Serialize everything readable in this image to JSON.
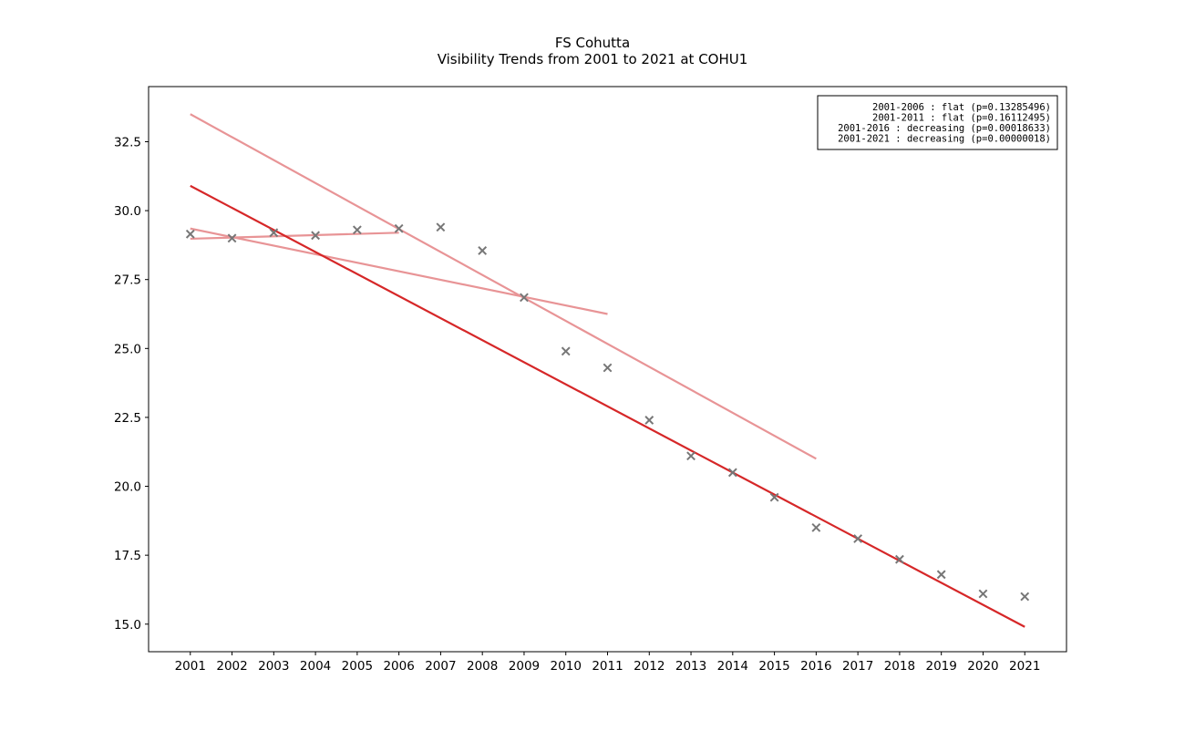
{
  "chart_data": {
    "type": "scatter",
    "title": "FS Cohutta",
    "subtitle": "Visibility Trends from 2001 to 2021 at COHU1",
    "xlabel": "",
    "ylabel": "",
    "x": [
      2001,
      2002,
      2003,
      2004,
      2005,
      2006,
      2007,
      2008,
      2009,
      2010,
      2011,
      2012,
      2013,
      2014,
      2015,
      2016,
      2017,
      2018,
      2019,
      2020,
      2021
    ],
    "values": [
      29.15,
      29.0,
      29.2,
      29.1,
      29.3,
      29.35,
      29.4,
      28.55,
      26.85,
      24.9,
      24.3,
      22.4,
      21.1,
      20.5,
      19.6,
      18.5,
      18.1,
      17.35,
      16.8,
      16.1,
      16.0
    ],
    "xlim": [
      2000.0,
      2022.0
    ],
    "ylim": [
      14.0,
      34.5
    ],
    "xticks": [
      2001,
      2002,
      2003,
      2004,
      2005,
      2006,
      2007,
      2008,
      2009,
      2010,
      2011,
      2012,
      2013,
      2014,
      2015,
      2016,
      2017,
      2018,
      2019,
      2020,
      2021
    ],
    "yticks": [
      15.0,
      17.5,
      20.0,
      22.5,
      25.0,
      27.5,
      30.0,
      32.5
    ],
    "ytick_labels": [
      "15.0",
      "17.5",
      "20.0",
      "22.5",
      "25.0",
      "27.5",
      "30.0",
      "32.5"
    ],
    "trend_lines": [
      {
        "label": "2001-2006 : flat (p=0.13285496)",
        "x": [
          2001,
          2006
        ],
        "y": [
          28.98,
          29.2
        ],
        "color": "#e89496"
      },
      {
        "label": "2001-2011 : flat (p=0.16112495)",
        "x": [
          2001,
          2011
        ],
        "y": [
          29.35,
          26.25
        ],
        "color": "#e89496"
      },
      {
        "label": "2001-2016 : decreasing (p=0.00018633)",
        "x": [
          2001,
          2016
        ],
        "y": [
          33.5,
          21.0
        ],
        "color": "#e89496"
      },
      {
        "label": "2001-2021 : decreasing (p=0.00000018)",
        "x": [
          2001,
          2021
        ],
        "y": [
          30.9,
          14.9
        ],
        "color": "#d62728"
      }
    ],
    "marker_color": "#777777",
    "legend_position": "top-right",
    "grid": false
  }
}
